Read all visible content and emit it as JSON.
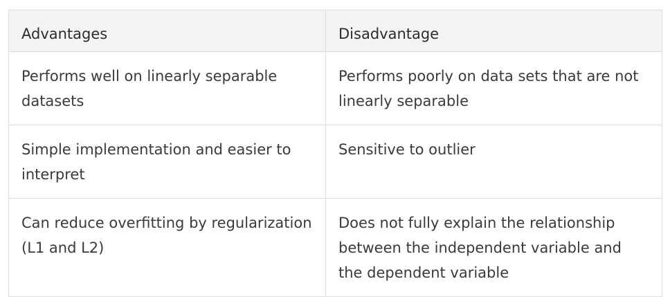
{
  "table": {
    "headers": [
      "Advantages",
      "Disadvantage"
    ],
    "rows": [
      [
        "Performs well on linearly separable datasets",
        "Performs poorly on data sets that are not linearly separable"
      ],
      [
        "Simple implementation and easier to interpret",
        "Sensitive to outlier"
      ],
      [
        "Can reduce overfitting by regularization (L1 and L2)",
        "Does not fully explain the relationship between the independent variable and the dependent variable"
      ]
    ]
  }
}
